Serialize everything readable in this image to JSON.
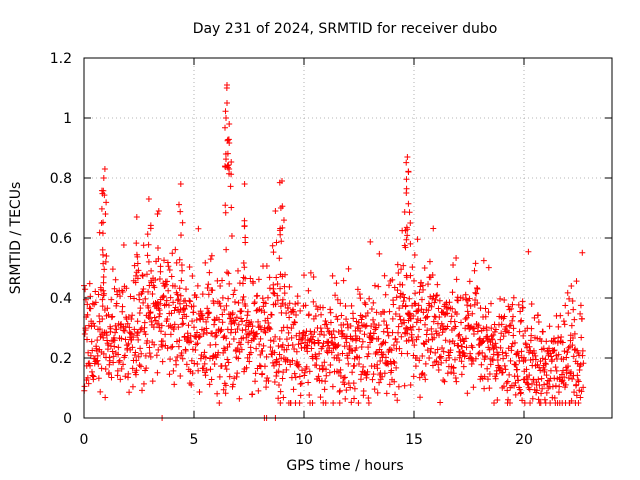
{
  "chart_data": {
    "type": "scatter",
    "title": "Day 231 of 2024, SRMTID for receiver dubo",
    "xlabel": "GPS time / hours",
    "ylabel": "SRMTID / TECUs",
    "xlim": [
      0,
      24
    ],
    "ylim": [
      0,
      1.2
    ],
    "xticks": [
      0,
      5,
      10,
      15,
      20
    ],
    "xtick_labels": [
      "0",
      "5",
      "10",
      "15",
      "20"
    ],
    "yticks": [
      0,
      0.2,
      0.4,
      0.6,
      0.8,
      1.0,
      1.2
    ],
    "ytick_labels": [
      "0",
      "0.2",
      "0.4",
      "0.6",
      "0.8",
      "1",
      "1.2"
    ],
    "grid": true,
    "marker": "+",
    "color": "#ff0000",
    "series": [
      {
        "name": "SRMTID",
        "baseline": [
          [
            0.0,
            0.26
          ],
          [
            1.0,
            0.28
          ],
          [
            2.0,
            0.27
          ],
          [
            3.0,
            0.35
          ],
          [
            4.0,
            0.33
          ],
          [
            5.0,
            0.29
          ],
          [
            6.0,
            0.28
          ],
          [
            7.0,
            0.3
          ],
          [
            8.0,
            0.27
          ],
          [
            9.0,
            0.25
          ],
          [
            10.0,
            0.22
          ],
          [
            11.0,
            0.22
          ],
          [
            12.0,
            0.22
          ],
          [
            13.0,
            0.24
          ],
          [
            14.0,
            0.26
          ],
          [
            15.0,
            0.32
          ],
          [
            16.0,
            0.3
          ],
          [
            17.0,
            0.28
          ],
          [
            18.0,
            0.26
          ],
          [
            19.0,
            0.22
          ],
          [
            20.0,
            0.2
          ],
          [
            21.0,
            0.19
          ],
          [
            22.0,
            0.19
          ],
          [
            22.7,
            0.2
          ]
        ],
        "peaks": [
          {
            "x": 6.5,
            "y": 1.11
          },
          {
            "x": 6.5,
            "y": 1.05
          },
          {
            "x": 6.6,
            "y": 0.98
          },
          {
            "x": 6.45,
            "y": 0.88
          },
          {
            "x": 14.7,
            "y": 0.87
          },
          {
            "x": 14.75,
            "y": 0.82
          },
          {
            "x": 14.65,
            "y": 0.75
          },
          {
            "x": 0.95,
            "y": 0.83
          },
          {
            "x": 0.9,
            "y": 0.8
          },
          {
            "x": 9.0,
            "y": 0.79
          },
          {
            "x": 4.4,
            "y": 0.78
          },
          {
            "x": 7.3,
            "y": 0.78
          },
          {
            "x": 2.95,
            "y": 0.73
          },
          {
            "x": 3.4,
            "y": 0.69
          },
          {
            "x": 8.7,
            "y": 0.69
          },
          {
            "x": 8.95,
            "y": 0.7
          },
          {
            "x": 0.8,
            "y": 0.65
          },
          {
            "x": 2.4,
            "y": 0.67
          }
        ],
        "zero_points": [
          3.55,
          8.2,
          8.3,
          8.7
        ]
      }
    ]
  }
}
